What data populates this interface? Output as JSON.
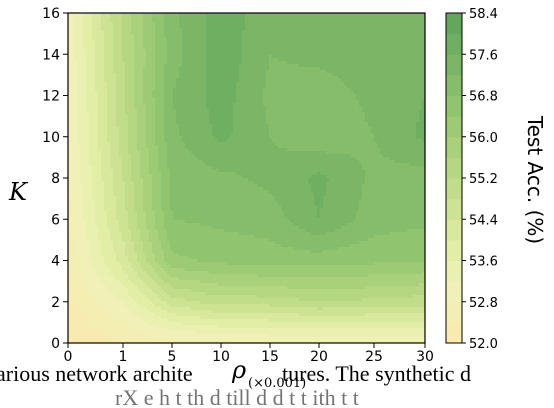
{
  "chart_data": {
    "type": "heatmap",
    "plot_style": "filled-contour",
    "x": [
      0,
      1,
      5,
      10,
      15,
      20,
      25,
      30
    ],
    "y": [
      0,
      2,
      4,
      6,
      8,
      10,
      12,
      14,
      16
    ],
    "x_tick_labels": [
      "0",
      "1",
      "5",
      "10",
      "15",
      "20",
      "25",
      "30"
    ],
    "y_tick_labels": [
      "0",
      "2",
      "4",
      "6",
      "8",
      "10",
      "12",
      "14",
      "16"
    ],
    "z": [
      [
        52.0,
        52.4,
        52.6,
        52.7,
        52.8,
        52.8,
        52.8,
        52.8
      ],
      [
        52.3,
        53.2,
        54.6,
        55.0,
        55.0,
        55.2,
        55.1,
        55.0
      ],
      [
        52.5,
        54.2,
        56.3,
        56.5,
        56.6,
        56.6,
        56.5,
        56.4
      ],
      [
        52.6,
        54.6,
        56.8,
        56.9,
        57.0,
        57.6,
        57.0,
        56.9
      ],
      [
        52.7,
        54.8,
        56.9,
        57.1,
        57.3,
        57.7,
        57.1,
        57.0
      ],
      [
        52.8,
        55.0,
        57.1,
        57.7,
        57.2,
        56.9,
        57.2,
        57.7
      ],
      [
        52.8,
        55.1,
        57.2,
        57.8,
        57.1,
        57.0,
        57.3,
        57.6
      ],
      [
        52.9,
        55.2,
        57.0,
        57.9,
        57.2,
        57.3,
        57.4,
        57.4
      ],
      [
        53.0,
        55.3,
        57.1,
        57.8,
        57.4,
        57.4,
        57.4,
        57.4
      ]
    ],
    "ylabel": "K",
    "xlabel_symbol": "ρ",
    "xlabel_scale": "(×0.001)",
    "colorbar_label": "Test Acc. (%)",
    "colorbar_ticks": [
      "58.4",
      "57.6",
      "56.8",
      "56.0",
      "55.2",
      "54.4",
      "53.6",
      "52.8",
      "52.0"
    ],
    "levels": [
      52.0,
      52.4,
      52.8,
      53.2,
      53.6,
      54.0,
      54.4,
      54.8,
      55.2,
      55.6,
      56.0,
      56.4,
      56.8,
      57.2,
      57.6,
      58.0,
      58.4
    ],
    "level_colors": [
      "#f9ebb0",
      "#f5eeb3",
      "#f1f0b6",
      "#eaf0b0",
      "#e2eda6",
      "#d8e99d",
      "#cde393",
      "#c2dd8a",
      "#b6d782",
      "#a9d07b",
      "#9dca74",
      "#91c46f",
      "#86bd6a",
      "#7ab666",
      "#6faf62",
      "#63a75d"
    ],
    "zlim": [
      52.0,
      58.4
    ],
    "grid": false
  },
  "caption": {
    "line1_left": "arious network archite",
    "line1_right": "tures. The synthetic d",
    "line2": "rX   e   h   t   th   d   till d   d   t    t   ith   t   t"
  }
}
